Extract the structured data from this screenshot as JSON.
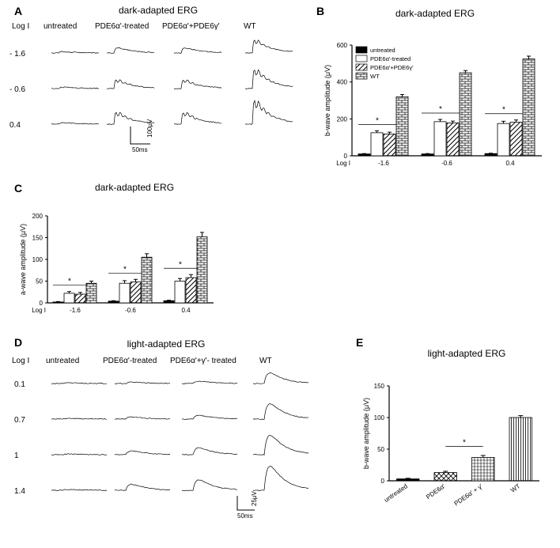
{
  "panelA": {
    "label": "A",
    "title": "dark-adapted ERG",
    "rowLabel": "Log I",
    "columns": [
      "untreated",
      "PDE6α'-treated",
      "PDE6α'+PDE6γ'",
      "WT"
    ],
    "rows": [
      "- 1.6",
      "- 0.6",
      "0.4"
    ],
    "scale_x": "50ms",
    "scale_y": "100μV",
    "stroke": "#000000",
    "stroke_width": 0.7
  },
  "panelB": {
    "label": "B",
    "title": "dark-adapted ERG",
    "ylabel": "b-wave amplitude (μV)",
    "xlabel": "Log I",
    "categories": [
      "-1.6",
      "-0.6",
      "0.4"
    ],
    "ylim": [
      0,
      600
    ],
    "ytick_step": 200,
    "series": [
      {
        "name": "untreated",
        "values": [
          10,
          10,
          12
        ],
        "err": [
          2,
          2,
          2
        ],
        "fill": "#000000",
        "pattern": "solid"
      },
      {
        "name": "PDE6α'-treated",
        "values": [
          125,
          185,
          175
        ],
        "err": [
          10,
          12,
          12
        ],
        "fill": "#ffffff",
        "pattern": "outline"
      },
      {
        "name": "PDE6α'+PDE6γ'",
        "values": [
          118,
          178,
          182
        ],
        "err": [
          10,
          10,
          12
        ],
        "fill": "#ffffff",
        "pattern": "diag"
      },
      {
        "name": "WT",
        "values": [
          320,
          450,
          525
        ],
        "err": [
          12,
          12,
          15
        ],
        "fill": "#ffffff",
        "pattern": "brick"
      }
    ],
    "sig": "*",
    "font_legend": 8,
    "font_axis": 9,
    "font_tick": 8
  },
  "panelC": {
    "label": "C",
    "title": "dark-adapted ERG",
    "ylabel": "a-wave amplitude (μV)",
    "xlabel": "Log I",
    "categories": [
      "-1.6",
      "-0.6",
      "0.4"
    ],
    "ylim": [
      0,
      200
    ],
    "ytick_step": 50,
    "series_ref": "panelB.series",
    "values": [
      [
        2,
        4,
        5
      ],
      [
        22,
        45,
        50
      ],
      [
        20,
        48,
        58
      ],
      [
        45,
        105,
        152
      ]
    ],
    "err": [
      [
        1,
        1,
        1
      ],
      [
        4,
        6,
        6
      ],
      [
        4,
        6,
        7
      ],
      [
        5,
        8,
        10
      ]
    ],
    "sig": "*"
  },
  "panelD": {
    "label": "D",
    "title": "light-adapted ERG",
    "rowLabel": "Log I",
    "columns": [
      "untreated",
      "PDE6α'-treated",
      "PDE6α'+γ'- treated",
      "WT"
    ],
    "rows": [
      "0.1",
      "0.7",
      "1",
      "1.4"
    ],
    "scale_x": "50ms",
    "scale_y": "25μV",
    "stroke": "#000000",
    "stroke_width": 0.7
  },
  "panelE": {
    "label": "E",
    "title": "light-adapted ERG",
    "ylabel": "b-wave amplitude (μV)",
    "categories": [
      "untreated",
      "PDE6α'",
      "PDE6α' + γ'",
      "WT"
    ],
    "ylim": [
      0,
      150
    ],
    "ytick_step": 50,
    "values": [
      3,
      13,
      37,
      100
    ],
    "err": [
      1,
      2,
      3,
      3
    ],
    "patterns": [
      "solid",
      "cross",
      "hbrick",
      "vlines"
    ],
    "fill": "#ffffff",
    "sig": "*"
  },
  "colors": {
    "axis": "#000000",
    "bg": "#ffffff"
  }
}
